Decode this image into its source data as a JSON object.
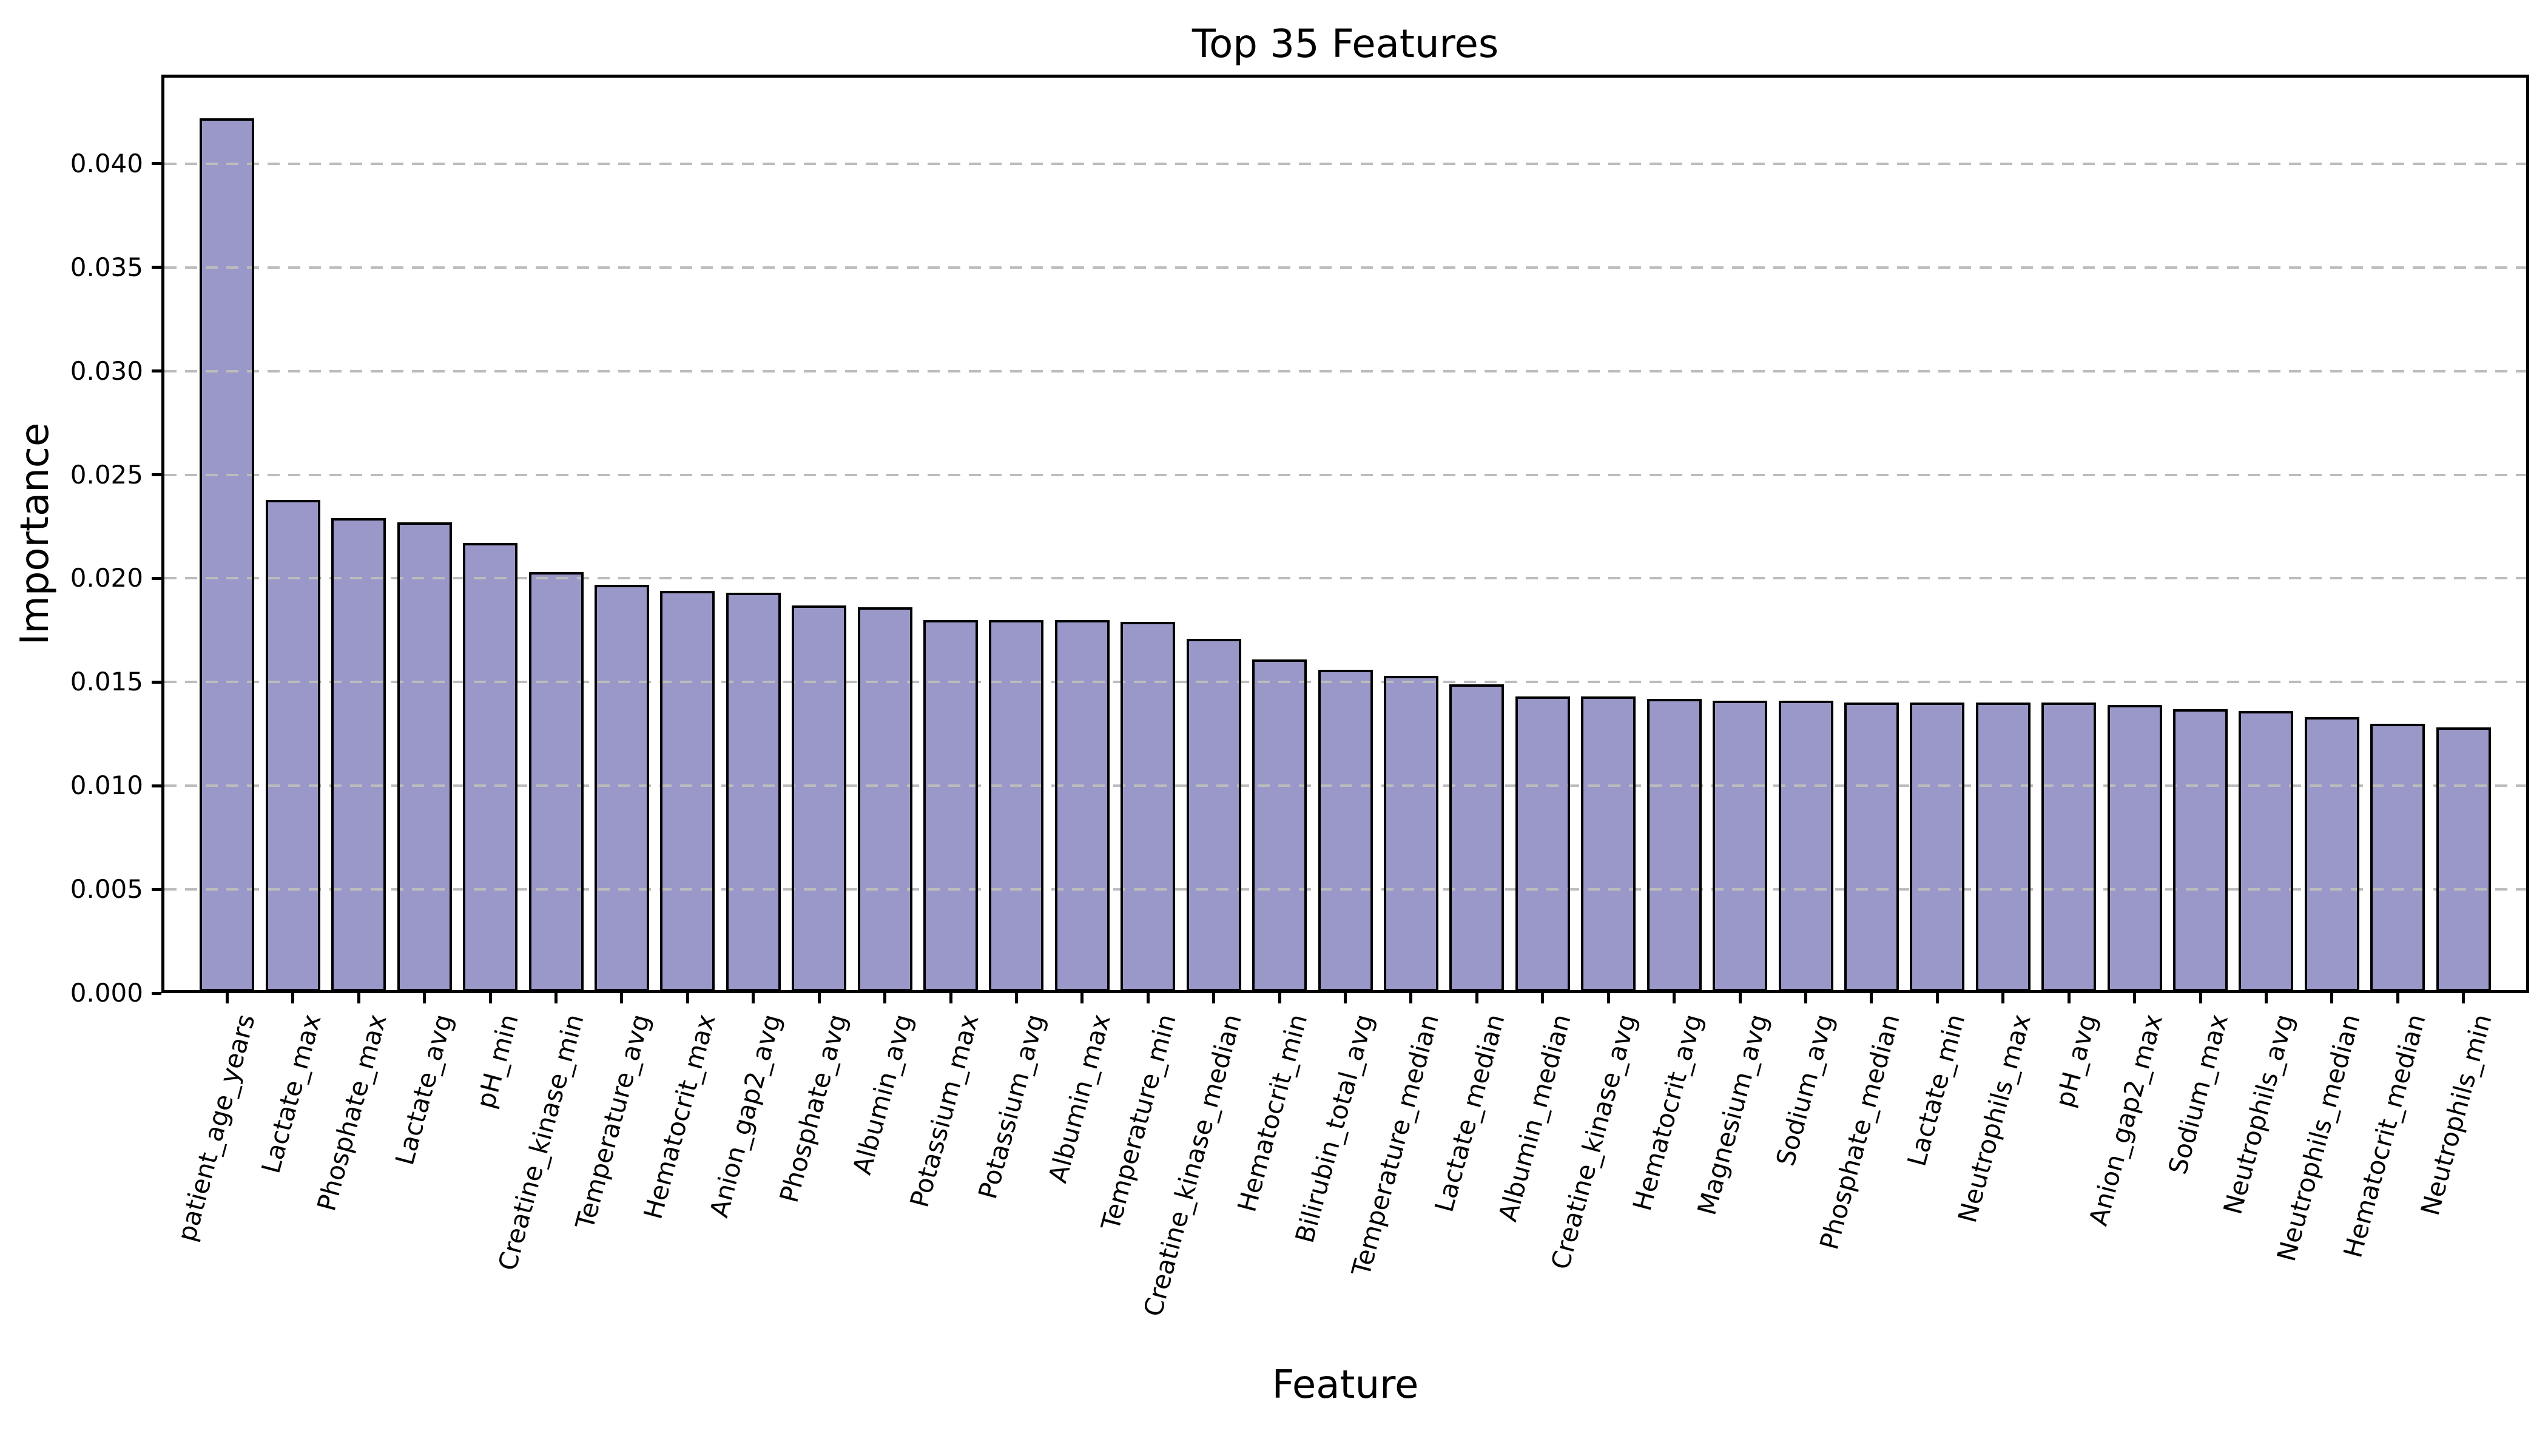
{
  "figure": {
    "title": "Top 35 Features",
    "xlabel": "Feature",
    "ylabel": "Importance"
  },
  "axes": {
    "ytick_labels": [
      "0.000",
      "0.005",
      "0.010",
      "0.015",
      "0.020",
      "0.025",
      "0.030",
      "0.035",
      "0.040"
    ]
  },
  "chart_data": {
    "type": "bar",
    "title": "Top 35 Features",
    "xlabel": "Feature",
    "ylabel": "Importance",
    "ylim": [
      0,
      0.0443
    ],
    "grid": "horizontal-dashed",
    "legend": "none",
    "bar_color": "#9a98c8",
    "bar_edge_color": "#000000",
    "categories": [
      "patient_age_years",
      "Lactate_max",
      "Phosphate_max",
      "Lactate_avg",
      "pH_min",
      "Creatine_kinase_min",
      "Temperature_avg",
      "Hematocrit_max",
      "Anion_gap2_avg",
      "Phosphate_avg",
      "Albumin_avg",
      "Potassium_max",
      "Potassium_avg",
      "Albumin_max",
      "Temperature_min",
      "Creatine_kinase_median",
      "Hematocrit_min",
      "Bilirubin_total_avg",
      "Temperature_median",
      "Lactate_median",
      "Albumin_median",
      "Creatine_kinase_avg",
      "Hematocrit_avg",
      "Magnesium_avg",
      "Sodium_avg",
      "Phosphate_median",
      "Lactate_min",
      "Neutrophils_max",
      "pH_avg",
      "Anion_gap2_max",
      "Sodium_max",
      "Neutrophils_avg",
      "Neutrophils_median",
      "Hematocrit_median",
      "Neutrophils_min"
    ],
    "values": [
      0.0422,
      0.0238,
      0.0229,
      0.0227,
      0.0217,
      0.0203,
      0.0197,
      0.0194,
      0.0193,
      0.0187,
      0.0186,
      0.018,
      0.018,
      0.018,
      0.0179,
      0.0171,
      0.0161,
      0.0156,
      0.0153,
      0.0149,
      0.0143,
      0.0143,
      0.0142,
      0.0141,
      0.0141,
      0.014,
      0.014,
      0.014,
      0.014,
      0.0139,
      0.0137,
      0.0136,
      0.0133,
      0.013,
      0.0128
    ]
  }
}
